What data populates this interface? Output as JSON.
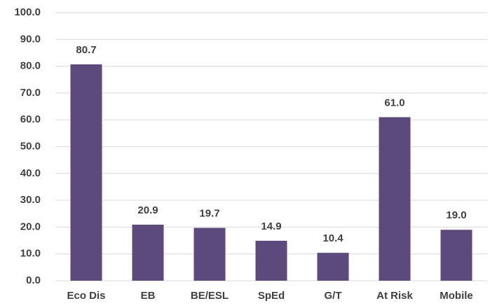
{
  "chart_data": {
    "type": "bar",
    "categories": [
      "Eco Dis",
      "EB",
      "BE/ESL",
      "SpEd",
      "G/T",
      "At Risk",
      "Mobile"
    ],
    "values": [
      80.7,
      20.9,
      19.7,
      14.9,
      10.4,
      61.0,
      19.0
    ],
    "value_labels": [
      "80.7",
      "20.9",
      "19.7",
      "14.9",
      "10.4",
      "61.0",
      "19.0"
    ],
    "color": "#5b4a7b",
    "ylim": [
      0,
      100
    ],
    "yticks": [
      {
        "value": 0,
        "label": "0.0"
      },
      {
        "value": 10,
        "label": "10.0"
      },
      {
        "value": 20,
        "label": "20.0"
      },
      {
        "value": 30,
        "label": "30.0"
      },
      {
        "value": 40,
        "label": "40.0"
      },
      {
        "value": 50,
        "label": "50.0"
      },
      {
        "value": 60,
        "label": "60.0"
      },
      {
        "value": 70,
        "label": "70.0"
      },
      {
        "value": 80,
        "label": "80.0"
      },
      {
        "value": 90,
        "label": "90.0"
      },
      {
        "value": 100,
        "label": "100.0"
      }
    ],
    "grid": true
  }
}
